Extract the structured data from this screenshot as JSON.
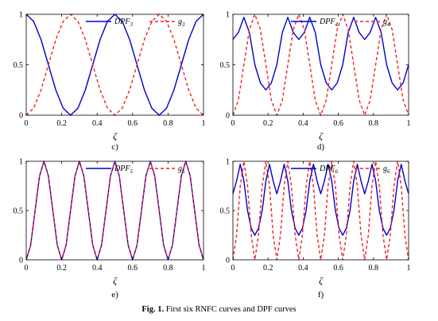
{
  "figure": {
    "caption_label": "Fig. 1.",
    "caption_text": " First six RNFC curves and DPF curves"
  },
  "chart_data": [
    {
      "type": "line",
      "panel_label": "c)",
      "xlabel": "ζ",
      "xlim": [
        0,
        1
      ],
      "ylim": [
        0,
        1
      ],
      "xticks": [
        "0",
        "0.2",
        "0.4",
        "0.6",
        "0.8",
        "1"
      ],
      "yticks": [
        "0",
        "0.5",
        "1"
      ],
      "x": [
        0,
        0.0417,
        0.0833,
        0.125,
        0.1667,
        0.2083,
        0.25,
        0.2917,
        0.3333,
        0.375,
        0.4167,
        0.4583,
        0.5,
        0.5417,
        0.5833,
        0.625,
        0.6667,
        0.7083,
        0.75,
        0.7917,
        0.8333,
        0.875,
        0.9167,
        0.9583,
        1
      ],
      "series": [
        {
          "base": "DPF",
          "sub": "3",
          "color": "#0000cc",
          "dash": "solid",
          "values": [
            1,
            0.93,
            0.75,
            0.5,
            0.25,
            0.07,
            0,
            0.07,
            0.25,
            0.5,
            0.75,
            0.93,
            1,
            0.93,
            0.75,
            0.5,
            0.25,
            0.07,
            0,
            0.07,
            0.25,
            0.5,
            0.75,
            0.93,
            1
          ]
        },
        {
          "base": "g",
          "sub": "3",
          "color": "#ee2222",
          "dash": "dashed",
          "values": [
            0,
            0.07,
            0.25,
            0.5,
            0.75,
            0.93,
            1,
            0.93,
            0.75,
            0.5,
            0.25,
            0.07,
            0,
            0.07,
            0.25,
            0.5,
            0.75,
            0.93,
            1,
            0.93,
            0.75,
            0.5,
            0.25,
            0.07,
            0
          ]
        }
      ]
    },
    {
      "type": "line",
      "panel_label": "d)",
      "xlabel": "ζ",
      "xlim": [
        0,
        1
      ],
      "ylim": [
        0,
        1
      ],
      "xticks": [
        "0",
        "0.2",
        "0.4",
        "0.6",
        "0.8",
        "1"
      ],
      "yticks": [
        "0",
        "0.5",
        "1"
      ],
      "x": [
        0,
        0.0313,
        0.0625,
        0.0938,
        0.125,
        0.1563,
        0.1875,
        0.2188,
        0.25,
        0.2813,
        0.3125,
        0.3438,
        0.375,
        0.4063,
        0.4375,
        0.4688,
        0.5,
        0.5313,
        0.5625,
        0.5938,
        0.625,
        0.6563,
        0.6875,
        0.7188,
        0.75,
        0.7813,
        0.8125,
        0.8438,
        0.875,
        0.9063,
        0.9375,
        0.9688,
        1
      ],
      "series": [
        {
          "base": "DPF",
          "sub": "4",
          "color": "#0000cc",
          "dash": "solid",
          "values": [
            0.75,
            0.82,
            0.97,
            0.82,
            0.5,
            0.32,
            0.25,
            0.32,
            0.5,
            0.82,
            0.97,
            0.82,
            0.75,
            0.82,
            0.97,
            0.82,
            0.5,
            0.32,
            0.25,
            0.32,
            0.5,
            0.82,
            0.97,
            0.82,
            0.75,
            0.82,
            0.97,
            0.82,
            0.5,
            0.32,
            0.25,
            0.32,
            0.5
          ]
        },
        {
          "base": "g",
          "sub": "4",
          "color": "#ee2222",
          "dash": "dashed",
          "values": [
            0,
            0.15,
            0.5,
            0.85,
            1,
            0.85,
            0.5,
            0.15,
            0,
            0.15,
            0.5,
            0.85,
            1,
            0.85,
            0.5,
            0.15,
            0,
            0.15,
            0.5,
            0.85,
            1,
            0.85,
            0.5,
            0.15,
            0,
            0.15,
            0.5,
            0.85,
            1,
            0.85,
            0.5,
            0.15,
            0
          ]
        }
      ]
    },
    {
      "type": "line",
      "panel_label": "e)",
      "xlabel": "ζ",
      "xlim": [
        0,
        1
      ],
      "ylim": [
        0,
        1
      ],
      "xticks": [
        "0",
        "0.2",
        "0.4",
        "0.6",
        "0.8",
        "1"
      ],
      "yticks": [
        "0",
        "0.5",
        "1"
      ],
      "x": [
        0,
        0.025,
        0.05,
        0.075,
        0.1,
        0.125,
        0.15,
        0.175,
        0.2,
        0.225,
        0.25,
        0.275,
        0.3,
        0.325,
        0.35,
        0.375,
        0.4,
        0.425,
        0.45,
        0.475,
        0.5,
        0.525,
        0.55,
        0.575,
        0.6,
        0.625,
        0.65,
        0.675,
        0.7,
        0.725,
        0.75,
        0.775,
        0.8,
        0.825,
        0.85,
        0.875,
        0.9,
        0.925,
        0.95,
        0.975,
        1
      ],
      "series": [
        {
          "base": "DPF",
          "sub": "5",
          "color": "#0000cc",
          "dash": "solid",
          "values": [
            0,
            0.15,
            0.5,
            0.85,
            1,
            0.85,
            0.5,
            0.15,
            0,
            0.15,
            0.5,
            0.85,
            1,
            0.85,
            0.5,
            0.15,
            0,
            0.15,
            0.5,
            0.85,
            1,
            0.85,
            0.5,
            0.15,
            0,
            0.15,
            0.5,
            0.85,
            1,
            0.85,
            0.5,
            0.15,
            0,
            0.15,
            0.5,
            0.85,
            1,
            0.85,
            0.5,
            0.15,
            0
          ]
        },
        {
          "base": "g",
          "sub": "5",
          "color": "#ee2222",
          "dash": "dashed",
          "values": [
            0,
            0.15,
            0.5,
            0.85,
            1,
            0.85,
            0.5,
            0.15,
            0,
            0.15,
            0.5,
            0.85,
            1,
            0.85,
            0.5,
            0.15,
            0,
            0.15,
            0.5,
            0.85,
            1,
            0.85,
            0.5,
            0.15,
            0,
            0.15,
            0.5,
            0.85,
            1,
            0.85,
            0.5,
            0.15,
            0,
            0.15,
            0.5,
            0.85,
            1,
            0.85,
            0.5,
            0.15,
            0
          ]
        }
      ]
    },
    {
      "type": "line",
      "panel_label": "f)",
      "xlabel": "ζ",
      "xlim": [
        0,
        1
      ],
      "ylim": [
        0,
        1
      ],
      "xticks": [
        "0",
        "0.2",
        "0.4",
        "0.6",
        "0.8",
        "1"
      ],
      "yticks": [
        "0",
        "0.5",
        "1"
      ],
      "x": [
        0,
        0.0208,
        0.0417,
        0.0625,
        0.0833,
        0.1042,
        0.125,
        0.1458,
        0.1667,
        0.1875,
        0.2083,
        0.2292,
        0.25,
        0.2708,
        0.2917,
        0.3125,
        0.3333,
        0.3542,
        0.375,
        0.3958,
        0.4167,
        0.4375,
        0.4583,
        0.4792,
        0.5,
        0.5208,
        0.5417,
        0.5625,
        0.5833,
        0.6042,
        0.625,
        0.6458,
        0.6667,
        0.6875,
        0.7083,
        0.7292,
        0.75,
        0.7708,
        0.7917,
        0.8125,
        0.8333,
        0.8542,
        0.875,
        0.8958,
        0.9167,
        0.9375,
        0.9583,
        0.9792,
        1
      ],
      "series": [
        {
          "base": "DPF",
          "sub": "6",
          "color": "#0000cc",
          "dash": "solid",
          "values": [
            0.67,
            0.8,
            0.97,
            0.8,
            0.5,
            0.32,
            0.25,
            0.32,
            0.5,
            0.8,
            0.97,
            0.8,
            0.67,
            0.8,
            0.97,
            0.8,
            0.5,
            0.32,
            0.25,
            0.32,
            0.5,
            0.8,
            0.97,
            0.8,
            0.67,
            0.8,
            0.97,
            0.8,
            0.5,
            0.32,
            0.25,
            0.32,
            0.5,
            0.8,
            0.97,
            0.8,
            0.67,
            0.8,
            0.97,
            0.8,
            0.5,
            0.32,
            0.25,
            0.32,
            0.5,
            0.8,
            0.97,
            0.8,
            0.67
          ]
        },
        {
          "base": "g",
          "sub": "6",
          "color": "#ee2222",
          "dash": "dashed",
          "values": [
            0,
            0.25,
            0.75,
            1,
            0.75,
            0.25,
            0,
            0.25,
            0.75,
            1,
            0.75,
            0.25,
            0,
            0.25,
            0.75,
            1,
            0.75,
            0.25,
            0,
            0.25,
            0.75,
            1,
            0.75,
            0.25,
            0,
            0.25,
            0.75,
            1,
            0.75,
            0.25,
            0,
            0.25,
            0.75,
            1,
            0.75,
            0.25,
            0,
            0.25,
            0.75,
            1,
            0.75,
            0.25,
            0,
            0.25,
            0.75,
            1,
            0.75,
            0.25,
            0
          ]
        }
      ]
    }
  ]
}
